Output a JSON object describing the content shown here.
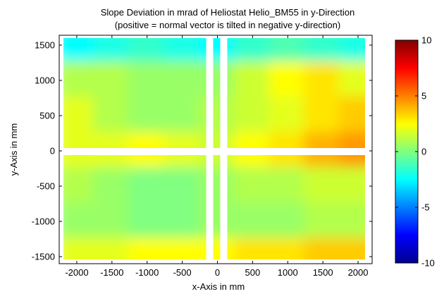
{
  "chart_data": {
    "type": "heatmap",
    "title": "Slope Deviation in mrad of Heliostat Helio_BM55 in y-Direction",
    "subtitle": "(positive = normal vector is tilted in negative y-direction)",
    "xlabel": "x-Axis in mm",
    "ylabel": "y-Axis in mm",
    "xlim": [
      -2250,
      2200
    ],
    "ylim": [
      -1600,
      1640
    ],
    "x_ticks": [
      "-2000",
      "-1500",
      "-1000",
      "-500",
      "0",
      "500",
      "1000",
      "1500",
      "2000"
    ],
    "y_ticks": [
      "1500",
      "1000",
      "500",
      "0",
      "-500",
      "-1000",
      "-1500"
    ],
    "colorbar": {
      "colormap": "jet",
      "range": [
        -10,
        10
      ],
      "ticks": [
        "10",
        "5",
        "0",
        "-5",
        "-10"
      ]
    },
    "x": [
      -2000,
      -1500,
      -1000,
      -500,
      0,
      500,
      1000,
      1500,
      2000
    ],
    "y": [
      1500,
      1000,
      500,
      0,
      -500,
      -1000,
      -1500
    ],
    "z": [
      [
        -2.5,
        -2.0,
        -1.5,
        -2.0,
        -2.5,
        -1.5,
        -1.0,
        -1.5,
        -2.0
      ],
      [
        1.0,
        1.0,
        0.5,
        0.5,
        0.5,
        1.5,
        2.5,
        3.0,
        2.0
      ],
      [
        2.0,
        1.0,
        0.5,
        0.5,
        1.0,
        1.5,
        2.0,
        3.0,
        3.5
      ],
      [
        2.0,
        2.0,
        2.5,
        2.0,
        1.5,
        2.5,
        3.0,
        4.0,
        4.5
      ],
      [
        1.0,
        0.5,
        0.0,
        0.0,
        0.5,
        1.0,
        1.0,
        1.5,
        1.5
      ],
      [
        0.5,
        0.5,
        0.0,
        0.0,
        0.5,
        0.5,
        0.5,
        1.0,
        1.0
      ],
      [
        2.0,
        2.0,
        2.5,
        2.5,
        2.5,
        3.0,
        3.0,
        3.5,
        3.5
      ]
    ],
    "grid": false
  }
}
